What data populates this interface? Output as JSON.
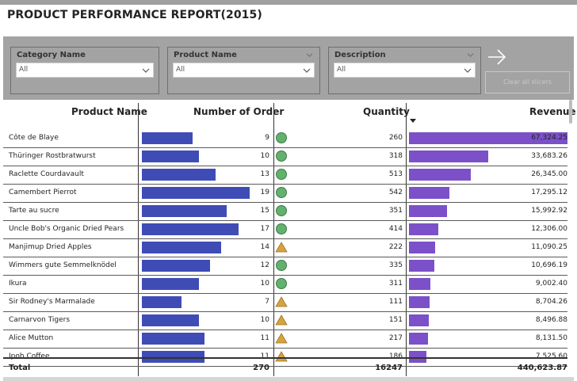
{
  "title": "PRODUCT PERFORMANCE REPORT(2015)",
  "slicers": [
    {
      "title": "Category Name",
      "value": "All",
      "has_header_chevron": false
    },
    {
      "title": "Product Name",
      "value": "All",
      "has_header_chevron": true
    },
    {
      "title": "Description",
      "value": "All",
      "has_header_chevron": true
    }
  ],
  "clear_button_label": "Clear all slicers",
  "icons": {
    "arrow": "arrow-right-icon",
    "chevron": "chevron-down-icon",
    "circle": "green-circle-icon",
    "triangle": "yellow-triangle-icon",
    "sort": "sort-desc-icon"
  },
  "colors": {
    "order_bar": "#3f4cb6",
    "revenue_bar": "#7b50c8",
    "status_green": "#62b26e",
    "status_yellow": "#d6a33e"
  },
  "table": {
    "headers": {
      "product_name": "Product Name",
      "number_of_order": "Number of Order",
      "quantity": "Quantity",
      "revenue": "Revenue"
    },
    "sorted_column": "revenue",
    "rows": [
      {
        "product": "Côte de Blaye",
        "orders": 9,
        "status": "circle",
        "quantity": 260,
        "revenue": "67,324.25",
        "revenue_value": 67324.25
      },
      {
        "product": "Thüringer Rostbratwurst",
        "orders": 10,
        "status": "circle",
        "quantity": 318,
        "revenue": "33,683.26",
        "revenue_value": 33683.26
      },
      {
        "product": "Raclette Courdavault",
        "orders": 13,
        "status": "circle",
        "quantity": 513,
        "revenue": "26,345.00",
        "revenue_value": 26345.0
      },
      {
        "product": "Camembert Pierrot",
        "orders": 19,
        "status": "circle",
        "quantity": 542,
        "revenue": "17,295.12",
        "revenue_value": 17295.12
      },
      {
        "product": "Tarte au sucre",
        "orders": 15,
        "status": "circle",
        "quantity": 351,
        "revenue": "15,992.92",
        "revenue_value": 15992.92
      },
      {
        "product": "Uncle Bob's Organic Dried Pears",
        "orders": 17,
        "status": "circle",
        "quantity": 414,
        "revenue": "12,306.00",
        "revenue_value": 12306.0
      },
      {
        "product": "Manjimup Dried Apples",
        "orders": 14,
        "status": "triangle",
        "quantity": 222,
        "revenue": "11,090.25",
        "revenue_value": 11090.25
      },
      {
        "product": "Wimmers gute Semmelknödel",
        "orders": 12,
        "status": "circle",
        "quantity": 335,
        "revenue": "10,696.19",
        "revenue_value": 10696.19
      },
      {
        "product": "Ikura",
        "orders": 10,
        "status": "circle",
        "quantity": 311,
        "revenue": "9,002.40",
        "revenue_value": 9002.4
      },
      {
        "product": "Sir Rodney's Marmalade",
        "orders": 7,
        "status": "triangle",
        "quantity": 111,
        "revenue": "8,704.26",
        "revenue_value": 8704.26
      },
      {
        "product": "Carnarvon Tigers",
        "orders": 10,
        "status": "triangle",
        "quantity": 151,
        "revenue": "8,496.88",
        "revenue_value": 8496.88
      },
      {
        "product": "Alice Mutton",
        "orders": 11,
        "status": "triangle",
        "quantity": 217,
        "revenue": "8,131.50",
        "revenue_value": 8131.5
      },
      {
        "product": "Ipoh Coffee",
        "orders": 11,
        "status": "triangle",
        "quantity": 186,
        "revenue": "7,525.60",
        "revenue_value": 7525.6
      }
    ],
    "total": {
      "label": "Total",
      "orders": "270",
      "quantity": "16247",
      "revenue": "440,623.87"
    },
    "order_bar_max": 19,
    "revenue_bar_max": 67324.25
  }
}
